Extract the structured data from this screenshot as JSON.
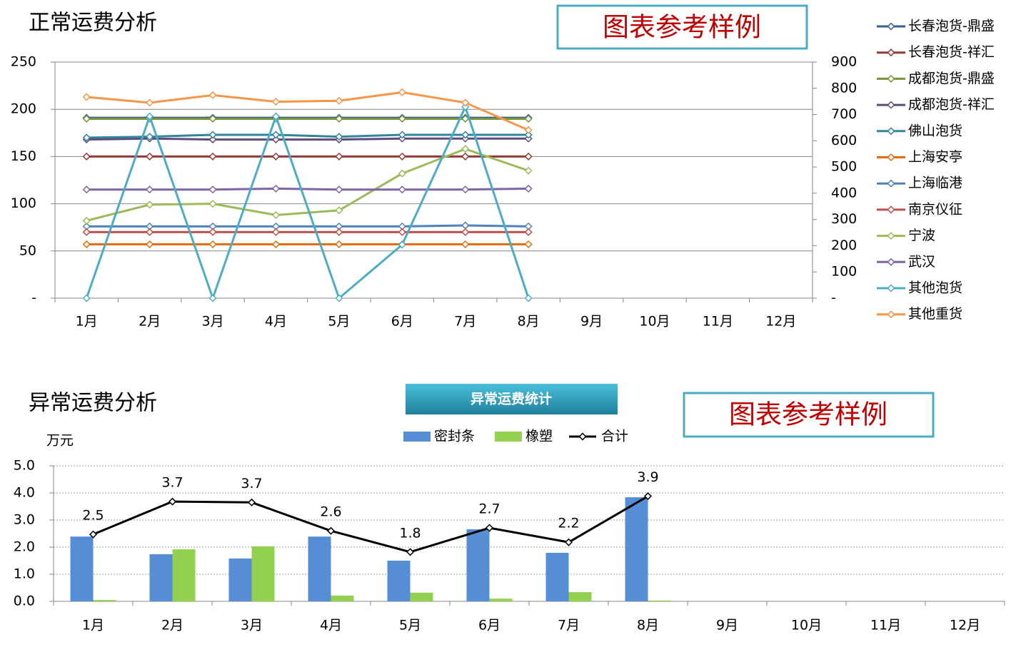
{
  "chart_data": [
    {
      "type": "line",
      "title": "正常运费分析",
      "annotation": "图表参考样例",
      "categories": [
        "1月",
        "2月",
        "3月",
        "4月",
        "5月",
        "6月",
        "7月",
        "8月",
        "9月",
        "10月",
        "11月",
        "12月"
      ],
      "ylim": [
        0,
        250
      ],
      "yticks": [
        {
          "value": 0,
          "label": "-"
        },
        50,
        100,
        150,
        200,
        250
      ],
      "y2lim": [
        0,
        900
      ],
      "y2ticks": [
        {
          "value": 0,
          "label": "-"
        },
        100,
        200,
        300,
        400,
        500,
        600,
        700,
        800,
        900
      ],
      "grid": true,
      "legend": "right",
      "series": [
        {
          "name": "长春泡货-鼎盛",
          "color": "#376092",
          "values": [
            191,
            191,
            191,
            191,
            191,
            191,
            191,
            191,
            null,
            null,
            null,
            null
          ]
        },
        {
          "name": "长春泡货-祥汇",
          "color": "#953735",
          "values": [
            150,
            150,
            150,
            150,
            150,
            150,
            150,
            150,
            null,
            null,
            null,
            null
          ]
        },
        {
          "name": "成都泡货-鼎盛",
          "color": "#77933c",
          "values": [
            190,
            190,
            190,
            190,
            190,
            190,
            190,
            190,
            null,
            null,
            null,
            null
          ]
        },
        {
          "name": "成都泡货-祥汇",
          "color": "#604a7b",
          "values": [
            168,
            169,
            168,
            168,
            168,
            169,
            169,
            169,
            null,
            null,
            null,
            null
          ]
        },
        {
          "name": "佛山泡货",
          "color": "#31859c",
          "values": [
            170,
            171,
            173,
            173,
            171,
            173,
            173,
            173,
            null,
            null,
            null,
            null
          ]
        },
        {
          "name": "上海安亭",
          "color": "#e46c0a",
          "values": [
            57,
            57,
            57,
            57,
            57,
            57,
            57,
            57,
            null,
            null,
            null,
            null
          ]
        },
        {
          "name": "上海临港",
          "color": "#4f81bd",
          "values": [
            76,
            76,
            76,
            76,
            76,
            76,
            77,
            76,
            null,
            null,
            null,
            null
          ]
        },
        {
          "name": "南京仪征",
          "color": "#c0504d",
          "values": [
            70,
            70,
            70,
            70,
            70,
            70,
            70,
            70,
            null,
            null,
            null,
            null
          ]
        },
        {
          "name": "宁波",
          "color": "#9bbb59",
          "values": [
            82,
            99,
            100,
            88,
            93,
            132,
            158,
            135,
            null,
            null,
            null,
            null
          ]
        },
        {
          "name": "武汉",
          "color": "#8064a2",
          "values": [
            115,
            115,
            115,
            116,
            115,
            115,
            115,
            116,
            null,
            null,
            null,
            null
          ]
        },
        {
          "name": "其他泡货",
          "color": "#4bacc6",
          "axis": "y2",
          "values": [
            0,
            693,
            0,
            693,
            0,
            204,
            729,
            0,
            null,
            null,
            null,
            null
          ]
        },
        {
          "name": "其他重货",
          "color": "#f79646",
          "values": [
            213,
            207,
            215,
            208,
            209,
            218,
            207,
            178,
            null,
            null,
            null,
            null
          ]
        }
      ]
    },
    {
      "type": "bar",
      "title": "异常运费分析",
      "subtitle": "异常运费统计",
      "annotation": "图表参考样例",
      "y_label": "万元",
      "categories": [
        "1月",
        "2月",
        "3月",
        "4月",
        "5月",
        "6月",
        "7月",
        "8月",
        "9月",
        "10月",
        "11月",
        "12月"
      ],
      "ylim": [
        0,
        5
      ],
      "yticks": [
        {
          "value": 0,
          "label": "0.0"
        },
        {
          "value": 1,
          "label": "1.0"
        },
        {
          "value": 2,
          "label": "2.0"
        },
        {
          "value": 3,
          "label": "3.0"
        },
        {
          "value": 4,
          "label": "4.0"
        },
        {
          "value": 5,
          "label": "5.0"
        }
      ],
      "grid": true,
      "grid_style": "dotted",
      "legend": "top",
      "series": [
        {
          "name": "密封条",
          "color": "#558ed5",
          "values": [
            2.39,
            1.74,
            1.58,
            2.39,
            1.5,
            2.66,
            1.79,
            3.84,
            null,
            null,
            null,
            null
          ]
        },
        {
          "name": "橡塑",
          "color": "#92d050",
          "values": [
            0.05,
            1.92,
            2.03,
            0.21,
            0.32,
            0.1,
            0.34,
            0.03,
            null,
            null,
            null,
            null
          ]
        },
        {
          "name": "合计",
          "color": "#000000",
          "type": "line",
          "values": [
            2.47,
            3.68,
            3.65,
            2.6,
            1.82,
            2.71,
            2.18,
            3.88,
            null,
            null,
            null,
            null
          ],
          "value_labels": [
            "2.5",
            "3.7",
            "3.7",
            "2.6",
            "1.8",
            "2.7",
            "2.2",
            "3.9",
            null,
            null,
            null,
            null
          ]
        }
      ]
    }
  ]
}
